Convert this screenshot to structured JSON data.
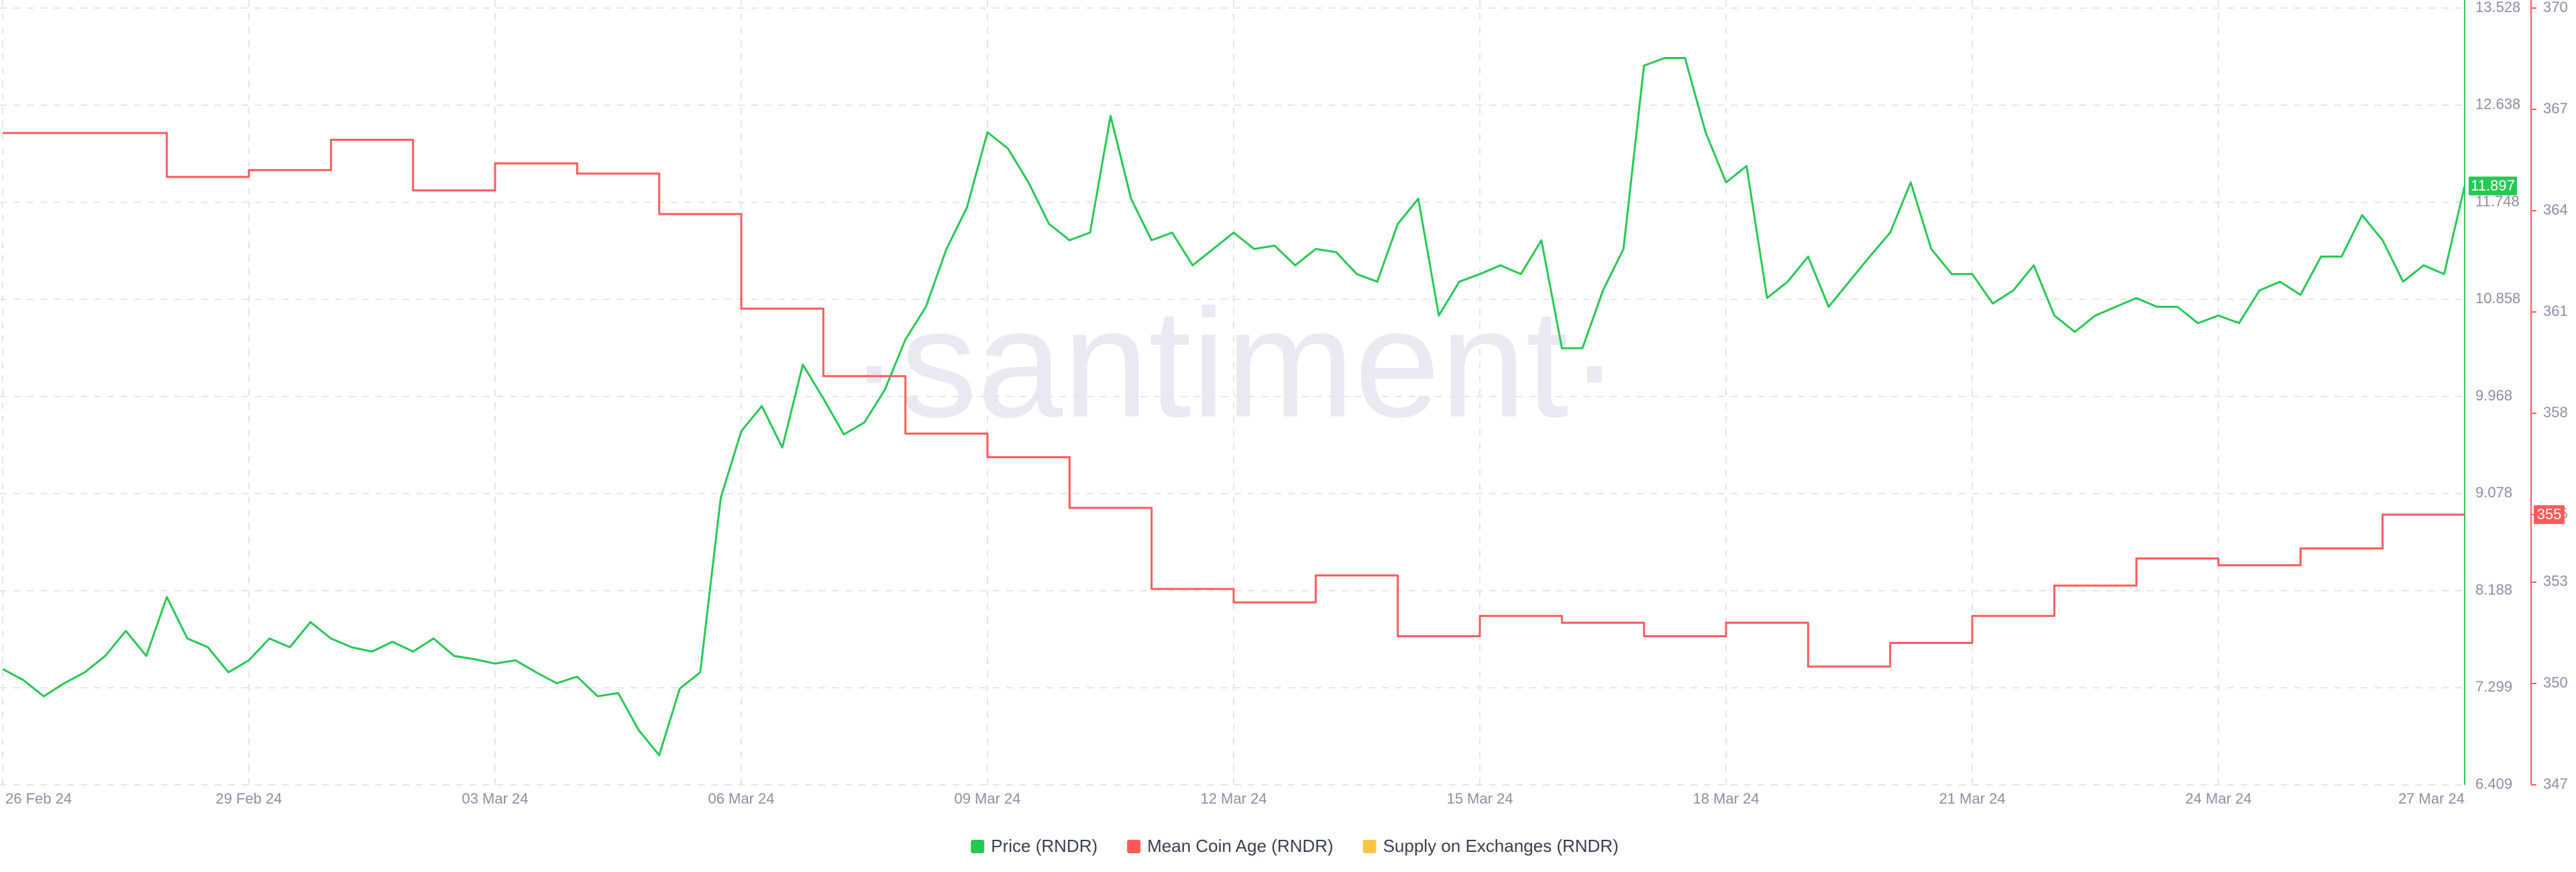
{
  "chart_data": {
    "type": "line",
    "watermark": "·santiment·",
    "x": [
      "26 Feb 24",
      null,
      null,
      null,
      null,
      null,
      null,
      null,
      null,
      null,
      null,
      null,
      "29 Feb 24",
      null,
      null,
      null,
      null,
      null,
      null,
      null,
      null,
      null,
      null,
      null,
      "03 Mar 24",
      null,
      null,
      null,
      null,
      null,
      null,
      null,
      null,
      null,
      null,
      null,
      "06 Mar 24",
      null,
      null,
      null,
      null,
      null,
      null,
      null,
      null,
      null,
      null,
      null,
      "09 Mar 24",
      null,
      null,
      null,
      null,
      null,
      null,
      null,
      null,
      null,
      null,
      null,
      "12 Mar 24",
      null,
      null,
      null,
      null,
      null,
      null,
      null,
      null,
      null,
      null,
      null,
      "15 Mar 24",
      null,
      null,
      null,
      null,
      null,
      null,
      null,
      null,
      null,
      null,
      null,
      "18 Mar 24",
      null,
      null,
      null,
      null,
      null,
      null,
      null,
      null,
      null,
      null,
      null,
      "21 Mar 24",
      null,
      null,
      null,
      null,
      null,
      null,
      null,
      null,
      null,
      null,
      null,
      "24 Mar 24",
      null,
      null,
      null,
      null,
      null,
      null,
      null,
      null,
      null,
      null,
      null,
      "27 Mar 24"
    ],
    "series": [
      {
        "name": "Price (RNDR)",
        "color": "#26c953",
        "axis": "y",
        "values": [
          7.47,
          7.37,
          7.22,
          7.34,
          7.44,
          7.59,
          7.82,
          7.59,
          8.13,
          7.75,
          7.67,
          7.44,
          7.55,
          7.75,
          7.67,
          7.9,
          7.75,
          7.67,
          7.63,
          7.72,
          7.63,
          7.75,
          7.59,
          7.56,
          7.52,
          7.55,
          7.44,
          7.34,
          7.4,
          7.22,
          7.25,
          6.91,
          6.68,
          7.29,
          7.44,
          9.04,
          9.65,
          9.88,
          9.5,
          10.26,
          9.95,
          9.62,
          9.73,
          10.03,
          10.49,
          10.79,
          11.32,
          11.7,
          12.39,
          12.24,
          11.93,
          11.55,
          11.4,
          11.47,
          12.54,
          11.78,
          11.4,
          11.47,
          11.17,
          11.32,
          11.47,
          11.32,
          11.35,
          11.17,
          11.32,
          11.29,
          11.09,
          11.02,
          11.55,
          11.78,
          10.71,
          11.02,
          11.09,
          11.17,
          11.09,
          11.4,
          10.41,
          10.41,
          10.94,
          11.32,
          13.0,
          13.07,
          13.07,
          12.39,
          11.93,
          12.08,
          10.87,
          11.02,
          11.25,
          10.79,
          11.02,
          11.25,
          11.47,
          11.93,
          11.32,
          11.09,
          11.09,
          10.82,
          10.94,
          11.17,
          10.71,
          10.56,
          10.71,
          10.79,
          10.87,
          10.79,
          10.79,
          10.64,
          10.71,
          10.64,
          10.94,
          11.02,
          10.9,
          11.25,
          11.25,
          11.63,
          11.4,
          11.02,
          11.17,
          11.09,
          11.897
        ]
      },
      {
        "name": "Mean Coin Age (RNDR)",
        "color": "#ff5b5b",
        "axis": "y2",
        "step": true,
        "values": [
          366.3,
          366.3,
          366.3,
          366.3,
          366.3,
          366.3,
          366.3,
          366.3,
          365.0,
          365.0,
          365.0,
          365.0,
          365.2,
          365.2,
          365.2,
          365.2,
          366.1,
          366.1,
          366.1,
          366.1,
          364.6,
          364.6,
          364.6,
          364.6,
          365.4,
          365.4,
          365.4,
          365.4,
          365.1,
          365.1,
          365.1,
          365.1,
          363.9,
          363.9,
          363.9,
          363.9,
          361.1,
          361.1,
          361.1,
          361.1,
          359.1,
          359.1,
          359.1,
          359.1,
          357.4,
          357.4,
          357.4,
          357.4,
          356.7,
          356.7,
          356.7,
          356.7,
          355.2,
          355.2,
          355.2,
          355.2,
          352.8,
          352.8,
          352.8,
          352.8,
          352.4,
          352.4,
          352.4,
          352.4,
          353.2,
          353.2,
          353.2,
          353.2,
          351.4,
          351.4,
          351.4,
          351.4,
          352.0,
          352.0,
          352.0,
          352.0,
          351.8,
          351.8,
          351.8,
          351.8,
          351.4,
          351.4,
          351.4,
          351.4,
          351.8,
          351.8,
          351.8,
          351.8,
          350.5,
          350.5,
          350.5,
          350.5,
          351.2,
          351.2,
          351.2,
          351.2,
          352.0,
          352.0,
          352.0,
          352.0,
          352.9,
          352.9,
          352.9,
          352.9,
          353.7,
          353.7,
          353.7,
          353.7,
          353.5,
          353.5,
          353.5,
          353.5,
          354.0,
          354.0,
          354.0,
          354.0,
          355,
          355,
          355,
          355,
          355
        ]
      },
      {
        "name": "Supply on Exchanges (RNDR)",
        "color": "#f7c744"
      }
    ],
    "ylim": [
      6.409,
      13.528
    ],
    "yticks": [
      6.409,
      7.299,
      8.188,
      9.078,
      9.968,
      10.858,
      11.748,
      12.638,
      13.528
    ],
    "y2lim": [
      347,
      370
    ],
    "y2ticks": [
      347,
      350,
      353,
      355,
      358,
      361,
      364,
      367,
      370
    ],
    "grid": true,
    "legend": "bottom"
  }
}
